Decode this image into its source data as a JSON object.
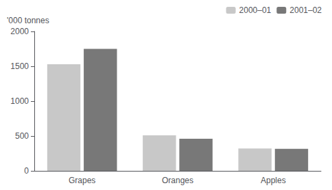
{
  "chart_data": {
    "type": "bar",
    "categories": [
      "Grapes",
      "Oranges",
      "Apples"
    ],
    "series": [
      {
        "name": "2000–01",
        "color": "#c8c8c8",
        "values": [
          1530,
          510,
          320
        ]
      },
      {
        "name": "2001–02",
        "color": "#787878",
        "values": [
          1750,
          460,
          315
        ]
      }
    ],
    "ylabel": "'000 tonnes",
    "ylim": [
      0,
      2000
    ],
    "yticks": [
      0,
      500,
      1000,
      1500,
      2000
    ],
    "grid": false,
    "legend": "upper right"
  }
}
